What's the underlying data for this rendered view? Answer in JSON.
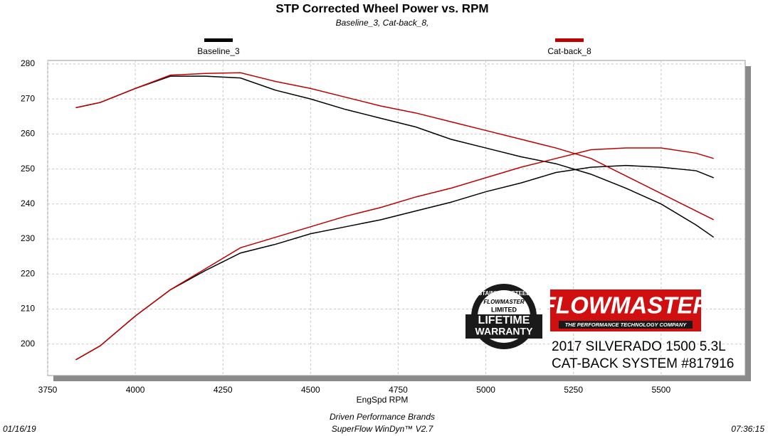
{
  "chart_data": {
    "type": "line",
    "title": "STP Corrected Wheel Power vs. RPM",
    "subtitle": "Baseline_3, Cat-back_8,",
    "x_label": "EngSpd  RPM",
    "footer": [
      "Driven Performance Brands",
      "SuperFlow WinDyn™  V2.7"
    ],
    "date": "01/16/19",
    "time": "07:36:15",
    "x": [
      3830,
      3900,
      4000,
      4100,
      4200,
      4300,
      4400,
      4500,
      4600,
      4700,
      4800,
      4900,
      5000,
      5100,
      5200,
      5300,
      5400,
      5500,
      5600,
      5650
    ],
    "series": [
      {
        "name": "Baseline_3",
        "color": "#000000",
        "values": [
          267.5,
          269,
          273,
          276.5,
          276.5,
          276,
          272.5,
          270,
          267,
          264.5,
          262,
          258.5,
          256,
          253.5,
          251.5,
          248.5,
          244.5,
          240,
          234,
          230.5
        ],
        "values_2": [
          195.5,
          199.5,
          208,
          215.5,
          221,
          226,
          228.5,
          231.5,
          233.5,
          235.5,
          238,
          240.5,
          243.5,
          246,
          249,
          250.5,
          251,
          250.5,
          249.5,
          247.5
        ]
      },
      {
        "name": "Cat-back_8",
        "color": "#c00000",
        "values": [
          267.5,
          269,
          273,
          276.8,
          277.3,
          277.5,
          275,
          273,
          270.5,
          268,
          266,
          263.5,
          261,
          258.5,
          256,
          253,
          248,
          243,
          238,
          235.5
        ],
        "values_2": [
          195.5,
          199.5,
          208,
          215.5,
          221.5,
          227.5,
          230.5,
          233.5,
          236.5,
          239,
          242,
          244.5,
          247.5,
          250.5,
          253,
          255.5,
          256,
          256,
          254.5,
          253
        ]
      }
    ],
    "xlim": [
      3750,
      5740
    ],
    "xticks": [
      3750,
      4000,
      4250,
      4500,
      4750,
      5000,
      5250,
      5500
    ],
    "ylim": [
      191,
      281
    ],
    "yticks": [
      200,
      210,
      220,
      230,
      240,
      250,
      260,
      270,
      280
    ],
    "grid": true,
    "badge": {
      "ring": "STAINLESS STEEL",
      "brand": "FLOWMASTER",
      "limited": "LIMITED",
      "lifetime": "LIFETIME",
      "warranty": "WARRANTY"
    },
    "logo": {
      "brand": "FLOWMASTER",
      "tagline": "THE PERFORMANCE TECHNOLOGY COMPANY"
    },
    "annotations": [
      "2017 SILVERADO 1500 5.3L",
      "CAT-BACK SYSTEM #817916"
    ]
  }
}
